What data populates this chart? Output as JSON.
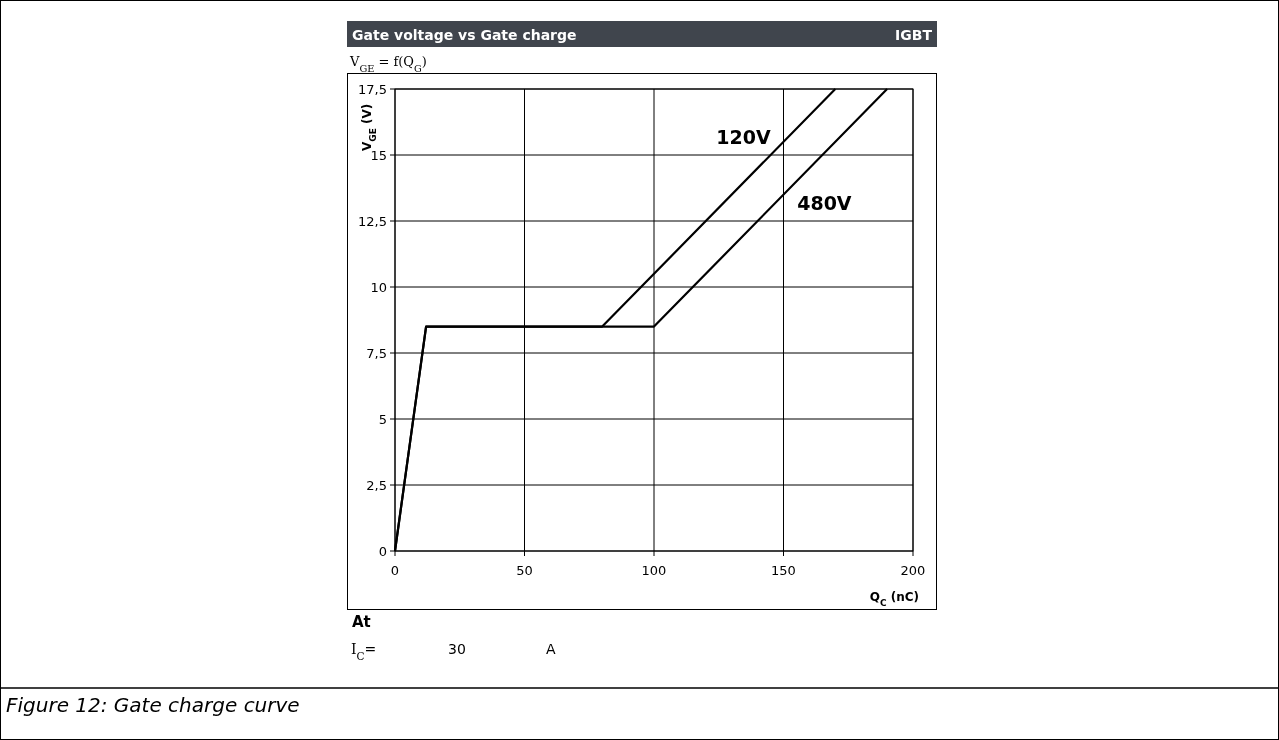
{
  "chart_data": {
    "type": "line",
    "title": "Gate voltage vs Gate charge",
    "subtitle": "V$_{GE}$ = f(Q$_{G}$)",
    "xlabel": "Q$_{C}$ (nC)",
    "ylabel": "V$_{GE}$ (V)",
    "annotations": [
      "IGBT",
      "At",
      "I$_{C}$=",
      "30",
      "A",
      "Figure 12: Gate charge curve"
    ],
    "series": [
      {
        "name": "120V",
        "color": "#000000",
        "x": [
          0,
          12,
          80,
          170
        ],
        "values": [
          0,
          8.5,
          8.5,
          17.5
        ]
      },
      {
        "name": "480V",
        "color": "#000000",
        "x": [
          0,
          12,
          100,
          190
        ],
        "values": [
          0,
          8.5,
          8.5,
          17.5
        ]
      }
    ],
    "xlim": [
      0,
      200
    ],
    "xticks": [
      0,
      50,
      100,
      150,
      200
    ],
    "ylim": [
      0,
      17.5
    ],
    "yticks": [
      0,
      {
        "value": 2.5,
        "label": "2,5"
      },
      5,
      {
        "value": 7.5,
        "label": "7,5"
      },
      10,
      {
        "value": 12.5,
        "label": "12,5"
      },
      15,
      {
        "value": 17.5,
        "label": "17,5"
      }
    ],
    "grid": true,
    "marker": "none",
    "line_style": "solid"
  }
}
